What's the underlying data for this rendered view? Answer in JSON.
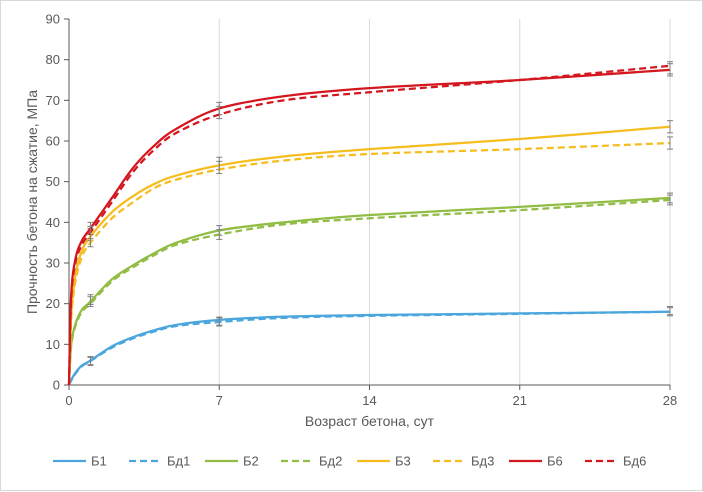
{
  "chart_data": {
    "type": "line",
    "xlabel": "Возраст бетона, сут",
    "ylabel": "Прочность бетона на сжатие, МПа",
    "xlim": [
      0,
      28
    ],
    "ylim": [
      0,
      90
    ],
    "xticks": [
      0,
      7,
      14,
      21,
      28
    ],
    "yticks": [
      0,
      10,
      20,
      30,
      40,
      50,
      60,
      70,
      80,
      90
    ],
    "grid": "vertical",
    "legend_position": "bottom",
    "series": [
      {
        "name": "Б1",
        "color": "#4aa6dc",
        "dash": "solid",
        "x": [
          0,
          0.1,
          0.3,
          0.6,
          1,
          2,
          3,
          4,
          5,
          7,
          10,
          14,
          21,
          28
        ],
        "y": [
          0,
          1.2,
          3,
          4.8,
          6,
          9.5,
          11.8,
          13.5,
          14.8,
          16,
          16.8,
          17.2,
          17.6,
          18
        ],
        "error_x": [
          1,
          7,
          28
        ],
        "error_y": [
          6,
          15.7,
          18.3
        ],
        "error": 1
      },
      {
        "name": "Бд1",
        "color": "#4aa6dc",
        "dash": "dashed",
        "x": [
          0,
          0.1,
          0.3,
          0.6,
          1,
          2,
          3,
          4,
          5,
          7,
          10,
          14,
          21,
          28
        ],
        "y": [
          0,
          1.1,
          2.8,
          4.6,
          5.9,
          9.2,
          11.5,
          13.2,
          14.5,
          15.5,
          16.5,
          17,
          17.5,
          18
        ],
        "error_x": [
          1,
          7,
          28
        ],
        "error_y": [
          5.8,
          15.5,
          18
        ],
        "error": 1
      },
      {
        "name": "Б2",
        "color": "#91bd45",
        "dash": "solid",
        "x": [
          0,
          0.1,
          0.3,
          0.6,
          1,
          2,
          3,
          4,
          5,
          7,
          10,
          14,
          21,
          28
        ],
        "y": [
          0,
          10,
          15,
          18.5,
          20.5,
          26,
          29.5,
          32.5,
          35,
          38,
          40,
          41.8,
          43.8,
          46
        ],
        "error_x": [
          1,
          7,
          28
        ],
        "error_y": [
          21,
          38,
          46
        ],
        "error": 1.2
      },
      {
        "name": "Бд2",
        "color": "#91bd45",
        "dash": "dashed",
        "x": [
          0,
          0.1,
          0.3,
          0.6,
          1,
          2,
          3,
          4,
          5,
          7,
          10,
          14,
          21,
          28
        ],
        "y": [
          0,
          9.5,
          14.5,
          18,
          20,
          25.5,
          29,
          32,
          34.5,
          37,
          39.5,
          41,
          43,
          45.5
        ],
        "error_x": [
          1,
          7,
          28
        ],
        "error_y": [
          20.5,
          37,
          45.5
        ],
        "error": 1.2
      },
      {
        "name": "Б3",
        "color": "#f5bd1e",
        "dash": "solid",
        "x": [
          0,
          0.1,
          0.3,
          0.6,
          1,
          2,
          3,
          4,
          5,
          7,
          10,
          14,
          21,
          28
        ],
        "y": [
          0,
          17,
          27,
          33,
          36.5,
          42.5,
          46.5,
          49.5,
          51.5,
          54,
          56.2,
          58,
          60.5,
          63.5
        ],
        "error_x": [
          1,
          7,
          28
        ],
        "error_y": [
          37,
          54.5,
          63.5
        ],
        "error": 1.5
      },
      {
        "name": "Бд3",
        "color": "#f5bd1e",
        "dash": "dashed",
        "x": [
          0,
          0.1,
          0.3,
          0.6,
          1,
          2,
          3,
          4,
          5,
          7,
          10,
          14,
          21,
          28
        ],
        "y": [
          0,
          16,
          25.5,
          31.5,
          35,
          41,
          45,
          48.5,
          50.5,
          53,
          55.2,
          56.8,
          58,
          59.5
        ],
        "error_x": [
          1,
          7,
          28
        ],
        "error_y": [
          35.5,
          53.5,
          59.5
        ],
        "error": 1.5
      },
      {
        "name": "Б6",
        "color": "#d4171e",
        "dash": "solid",
        "x": [
          0,
          0.1,
          0.3,
          0.6,
          1,
          2,
          3,
          4,
          5,
          7,
          10,
          14,
          21,
          28
        ],
        "y": [
          0,
          22,
          31,
          35.5,
          38.5,
          46,
          53.5,
          59,
          63,
          68,
          71,
          73,
          75,
          77.5
        ],
        "error_x": [
          1,
          7,
          28
        ],
        "error_y": [
          38.5,
          68,
          77.5
        ],
        "error": 1.5
      },
      {
        "name": "Бд6",
        "color": "#d4171e",
        "dash": "dashed",
        "x": [
          0,
          0.1,
          0.3,
          0.6,
          1,
          2,
          3,
          4,
          5,
          7,
          10,
          14,
          21,
          28
        ],
        "y": [
          0,
          21,
          30,
          34.5,
          37.5,
          45,
          52.5,
          58,
          62,
          66.5,
          70,
          72,
          75,
          78.5
        ],
        "error_x": [
          1,
          7,
          28
        ],
        "error_y": [
          37.5,
          67,
          78
        ],
        "error": 1.5
      }
    ]
  }
}
